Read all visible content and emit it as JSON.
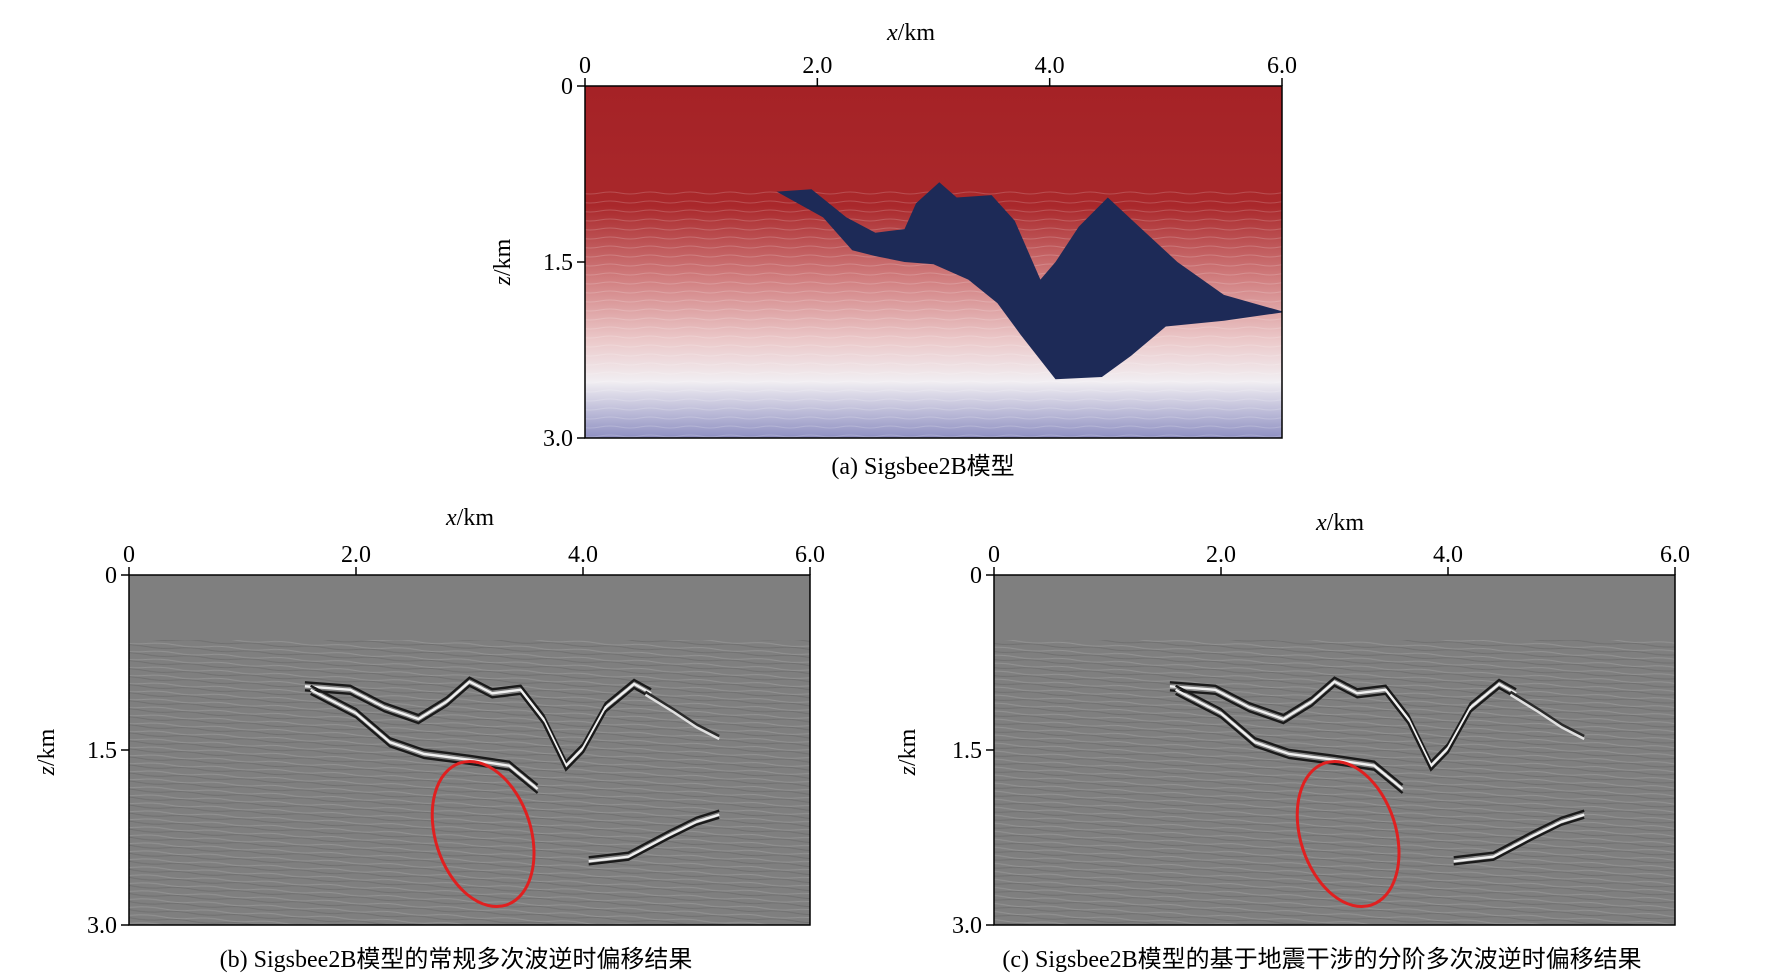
{
  "figure": {
    "panels": [
      {
        "id": "a",
        "caption": "(a) Sigsbee2B模型",
        "x_axis_label_var": "x",
        "x_axis_label_unit": "/km",
        "y_axis_label_var": "z",
        "y_axis_label_unit": "/km",
        "x_ticks": [
          "0",
          "2.0",
          "4.0",
          "6.0"
        ],
        "y_ticks": [
          "0",
          "1.5",
          "3.0"
        ],
        "image_kind": "velocity-model",
        "colors": {
          "top": "#a52226",
          "bottom": "#8f90c2",
          "mid": "#f1eef2",
          "salt": "#1d2a57"
        }
      },
      {
        "id": "b",
        "caption": "(b) Sigsbee2B模型的常规多次波逆时偏移结果",
        "x_axis_label_var": "x",
        "x_axis_label_unit": "/km",
        "y_axis_label_var": "z",
        "y_axis_label_unit": "/km",
        "x_ticks": [
          "0",
          "2.0",
          "4.0",
          "6.0"
        ],
        "y_ticks": [
          "0",
          "1.5",
          "3.0"
        ],
        "image_kind": "migration-image",
        "colors": {
          "background": "#7f7f7f",
          "highlight_ellipse": "#e02020"
        }
      },
      {
        "id": "c",
        "caption": "(c) Sigsbee2B模型的基于地震干涉的分阶多次波逆时偏移结果",
        "x_axis_label_var": "x",
        "x_axis_label_unit": "/km",
        "y_axis_label_var": "z",
        "y_axis_label_unit": "/km",
        "x_ticks": [
          "0",
          "2.0",
          "4.0",
          "6.0"
        ],
        "y_ticks": [
          "0",
          "1.5",
          "3.0"
        ],
        "image_kind": "migration-image",
        "colors": {
          "background": "#7f7f7f",
          "highlight_ellipse": "#e02020"
        }
      }
    ]
  },
  "chart_data": [
    {
      "type": "heatmap",
      "panel": "a",
      "title": "",
      "xlabel": "x/km",
      "ylabel": "z/km",
      "xlim": [
        0,
        6.0
      ],
      "ylim": [
        3.0,
        0
      ],
      "x_ticks": [
        0,
        2.0,
        4.0,
        6.0
      ],
      "y_ticks": [
        0,
        1.5,
        3.0
      ],
      "salt_body_outline_xz": [
        [
          1.65,
          0.9
        ],
        [
          1.95,
          0.88
        ],
        [
          2.25,
          1.12
        ],
        [
          2.5,
          1.25
        ],
        [
          2.75,
          1.22
        ],
        [
          2.85,
          1.0
        ],
        [
          3.05,
          0.82
        ],
        [
          3.2,
          0.95
        ],
        [
          3.5,
          0.93
        ],
        [
          3.7,
          1.15
        ],
        [
          3.92,
          1.65
        ],
        [
          4.05,
          1.5
        ],
        [
          4.25,
          1.2
        ],
        [
          4.5,
          0.95
        ],
        [
          4.75,
          1.18
        ],
        [
          5.1,
          1.5
        ],
        [
          5.5,
          1.78
        ],
        [
          6.0,
          1.92
        ],
        [
          6.0,
          1.93
        ],
        [
          5.5,
          2.0
        ],
        [
          5.0,
          2.05
        ],
        [
          4.7,
          2.3
        ],
        [
          4.45,
          2.48
        ],
        [
          4.05,
          2.5
        ],
        [
          3.75,
          2.12
        ],
        [
          3.55,
          1.85
        ],
        [
          3.3,
          1.65
        ],
        [
          3.0,
          1.52
        ],
        [
          2.75,
          1.5
        ],
        [
          2.5,
          1.45
        ],
        [
          2.3,
          1.4
        ],
        [
          2.05,
          1.12
        ],
        [
          1.65,
          0.9
        ]
      ]
    },
    {
      "type": "heatmap",
      "panel": "b",
      "title": "",
      "xlabel": "x/km",
      "ylabel": "z/km",
      "xlim": [
        0,
        6.0
      ],
      "ylim": [
        3.0,
        0
      ],
      "x_ticks": [
        0,
        2.0,
        4.0,
        6.0
      ],
      "y_ticks": [
        0,
        1.5,
        3.0
      ],
      "highlight_ellipse": {
        "cx": 3.12,
        "cz": 2.22,
        "rx": 0.42,
        "rz": 0.64,
        "rotation_deg": -18
      }
    },
    {
      "type": "heatmap",
      "panel": "c",
      "title": "",
      "xlabel": "x/km",
      "ylabel": "z/km",
      "xlim": [
        0,
        6.0
      ],
      "ylim": [
        3.0,
        0
      ],
      "x_ticks": [
        0,
        2.0,
        4.0,
        6.0
      ],
      "y_ticks": [
        0,
        1.5,
        3.0
      ],
      "highlight_ellipse": {
        "cx": 3.12,
        "cz": 2.22,
        "rx": 0.42,
        "rz": 0.64,
        "rotation_deg": -18
      }
    }
  ]
}
